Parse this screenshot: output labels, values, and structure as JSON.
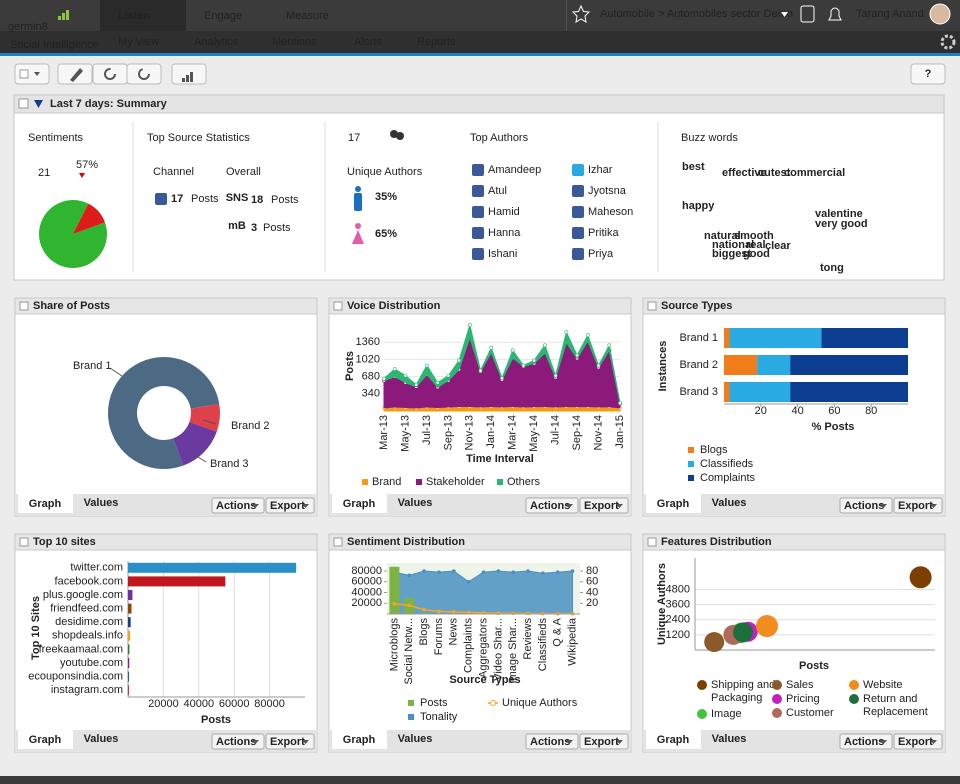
{
  "nav": {
    "logo": "germin8",
    "tagline": "Social Intelligence",
    "tabs": [
      "Listen",
      "Engage",
      "Measure"
    ],
    "subtabs": [
      "My View",
      "Analytics",
      "Mentions",
      "Alerts",
      "Reports"
    ],
    "breadcrumb": "Automobile > Automobiles sector Demo",
    "user": "Tarang Anand"
  },
  "toolbar": {
    "help": "?"
  },
  "summary": {
    "title": "Last 7 days: Summary",
    "sentiments": {
      "heading": "Sentiments",
      "count": 21,
      "change": "57%"
    },
    "sources": {
      "heading": "Top Source Statistics",
      "columns": [
        "Channel",
        "Overall"
      ],
      "items": [
        {
          "count": 17,
          "unit": "Posts"
        },
        {
          "icon": "SNS",
          "count": 18,
          "unit": "Posts"
        },
        {
          "icon": "mB",
          "count": 3,
          "unit": "Posts"
        }
      ]
    },
    "authors": {
      "count": 17,
      "label": "Unique Authors",
      "male": "35%",
      "female": "65%"
    },
    "top_authors": {
      "heading": "Top Authors",
      "names": [
        "Amandeep",
        "Atul",
        "Hamid",
        "Hanna",
        "Ishani",
        "Izhar",
        "Jyotsna",
        "Maheson",
        "Pritika",
        "Priya"
      ]
    },
    "buzz": {
      "heading": "Buzz words",
      "words": [
        {
          "text": "best",
          "color": "#1a6fc0"
        },
        {
          "text": "effective",
          "color": "#7b1fa2"
        },
        {
          "text": "cutest",
          "color": "#f39c12"
        },
        {
          "text": "commercial",
          "color": "#1a6fc0"
        },
        {
          "text": "happy",
          "color": "#0e3a6e"
        },
        {
          "text": "valentine",
          "color": "#e08a00"
        },
        {
          "text": "very good",
          "color": "#1b3a8c"
        },
        {
          "text": "natural",
          "color": "#8b4513"
        },
        {
          "text": "smooth",
          "color": "#6a1b9a"
        },
        {
          "text": "national",
          "color": "#c0392b"
        },
        {
          "text": "real",
          "color": "#1b3a8c"
        },
        {
          "text": "clear",
          "color": "#e91e8c"
        },
        {
          "text": "biggest",
          "color": "#2e7d32"
        },
        {
          "text": "good",
          "color": "#6a8e1f"
        },
        {
          "text": "tong",
          "color": "#c0392b"
        }
      ]
    }
  },
  "panel_controls": {
    "tabs": [
      "Graph",
      "Values"
    ],
    "buttons": [
      "Actions",
      "Export"
    ]
  },
  "chart_data": [
    {
      "type": "pie",
      "values": [
        88,
        12
      ],
      "colors": [
        "#2fb52f",
        "#e01b1b"
      ]
    },
    {
      "type": "donut",
      "title": "Share of Posts",
      "categories": [
        "Brand 1",
        "Brand 2",
        "Brand 3"
      ],
      "values": [
        78,
        8,
        14
      ],
      "colors": [
        "#4d6a85",
        "#e0404a",
        "#6a3aa0"
      ]
    },
    {
      "type": "stacked_area",
      "title": "Voice Distribution",
      "x_label": "Time Interval",
      "y_label": "Posts",
      "categories": [
        "Mar-13",
        null,
        "May-13",
        null,
        "Jul-13",
        null,
        "Sep-13",
        null,
        "Nov-13",
        null,
        "Jan-14",
        null,
        "Mar-14",
        null,
        "May-14",
        null,
        "Jul-14",
        null,
        "Sep-14",
        null,
        "Nov-14",
        null,
        "Jan-15"
      ],
      "series": [
        {
          "name": "Brand",
          "color": "#f39c12",
          "values": [
            60,
            80,
            70,
            60,
            80,
            70,
            80,
            90,
            90,
            80,
            90,
            80,
            90,
            80,
            85,
            90,
            80,
            90,
            85,
            90,
            80,
            85,
            60
          ]
        },
        {
          "name": "Stakeholder",
          "color": "#8b1a7a",
          "values": [
            540,
            600,
            490,
            420,
            640,
            400,
            520,
            730,
            1360,
            700,
            1060,
            540,
            960,
            800,
            855,
            1060,
            580,
            1260,
            955,
            1290,
            780,
            1115,
            80
          ]
        },
        {
          "name": "Others",
          "color": "#2bb673",
          "values": [
            40,
            150,
            140,
            40,
            180,
            90,
            100,
            180,
            250,
            20,
            100,
            30,
            150,
            20,
            60,
            150,
            40,
            210,
            60,
            120,
            40,
            100,
            20
          ]
        }
      ],
      "ylim": [
        0,
        1800
      ],
      "yticks": [
        340,
        680,
        1020,
        1360
      ],
      "grid": true
    },
    {
      "type": "stacked_hbar",
      "title": "Source Types",
      "x_label": "% Posts",
      "y_label": "Instances",
      "categories": [
        "Brand 1",
        "Brand 2",
        "Brand 3"
      ],
      "series": [
        {
          "name": "Blogs",
          "color": "#f07d1a",
          "values": [
            3,
            18,
            3
          ]
        },
        {
          "name": "Classifieds",
          "color": "#29abe2",
          "values": [
            50,
            18,
            33
          ]
        },
        {
          "name": "Complaints",
          "color": "#0b3d91",
          "values": [
            47,
            64,
            64
          ]
        }
      ],
      "xlim": [
        0,
        100
      ],
      "xticks": [
        20,
        40,
        60,
        80
      ]
    },
    {
      "type": "hbar",
      "title": "Top 10 sites",
      "x_label": "Posts",
      "y_label": "Top 10 Sites",
      "categories": [
        "twitter.com",
        "facebook.com",
        "plus.google.com",
        "friendfeed.com",
        "desidime.com",
        "shopdeals.info",
        "freekaamaal.com",
        "youtube.com",
        "ecouponsindia.com",
        "instagram.com"
      ],
      "values": [
        95000,
        55000,
        2500,
        2000,
        1500,
        1200,
        800,
        700,
        600,
        500
      ],
      "colors": [
        "#2a8fc9",
        "#c0171e",
        "#7030a0",
        "#8b4a14",
        "#1a3a8a",
        "#f7a21b",
        "#2e7d32",
        "#8b1a7a",
        "#1b6b5f",
        "#c0171e"
      ],
      "xlim": [
        0,
        100000
      ],
      "xticks": [
        20000,
        40000,
        60000,
        80000
      ],
      "grid": true
    },
    {
      "type": "combo",
      "title": "Sentiment Distribution",
      "x_label": "Source Types",
      "categories": [
        "Microblogs",
        "Social Netw...",
        "Blogs",
        "Forums",
        "News",
        "Complaints",
        "Aggregators",
        "Video Shar...",
        "Image Shar...",
        "Reviews",
        "Classifieds",
        "Q & A",
        "Wikipedia"
      ],
      "series": [
        {
          "name": "Posts",
          "kind": "bar",
          "color": "#7cb342",
          "values": [
            88000,
            30000,
            2000,
            1000,
            500,
            800,
            500,
            300,
            300,
            500,
            200,
            100,
            100
          ]
        },
        {
          "name": "Unique Authors",
          "kind": "line",
          "color": "#f5a623",
          "values": [
            19000,
            16000,
            8000,
            5000,
            4000,
            3000,
            2000,
            1500,
            1200,
            1000,
            800,
            500,
            500
          ]
        },
        {
          "name": "Tonality",
          "kind": "area",
          "axis": "y2",
          "color": "#4a90c2",
          "values": [
            78,
            72,
            80,
            78,
            80,
            60,
            78,
            80,
            78,
            80,
            76,
            78,
            80
          ]
        }
      ],
      "ylim": [
        0,
        95000
      ],
      "yticks": [
        20000,
        40000,
        60000,
        80000
      ],
      "y2lim": [
        0,
        95
      ],
      "y2ticks": [
        20,
        40,
        60,
        80
      ]
    },
    {
      "type": "bubble",
      "title": "Features Distribution",
      "x_label": "Posts",
      "y_label": "Unique Authors",
      "series": [
        {
          "name": "Shipping and Packaging",
          "color": "#7b3f00",
          "x": [
            9400
          ],
          "values": [
            5770
          ],
          "sizes": [
            11
          ]
        },
        {
          "name": "Image",
          "color": "#3cc43c",
          "x": [
            1900
          ],
          "values": [
            1350
          ],
          "sizes": [
            10
          ]
        },
        {
          "name": "Sales",
          "color": "#8b5a2b",
          "x": [
            800
          ],
          "values": [
            630
          ],
          "sizes": [
            10
          ]
        },
        {
          "name": "Pricing",
          "color": "#c21fc2",
          "x": [
            2200
          ],
          "values": [
            1450
          ],
          "sizes": [
            10
          ]
        },
        {
          "name": "Customer",
          "color": "#b06a5a",
          "x": [
            1600
          ],
          "values": [
            1200
          ],
          "sizes": [
            10
          ]
        },
        {
          "name": "Website",
          "color": "#f28c1e",
          "x": [
            3000
          ],
          "values": [
            1900
          ],
          "sizes": [
            11
          ]
        },
        {
          "name": "Return and Replacement",
          "color": "#1e6e3e",
          "x": [
            2000
          ],
          "values": [
            1400
          ],
          "sizes": [
            10
          ]
        }
      ],
      "xlim": [
        0,
        10000
      ],
      "ylim": [
        0,
        7300
      ],
      "yticks": [
        1200,
        2400,
        3600,
        4800
      ],
      "grid": true
    }
  ]
}
